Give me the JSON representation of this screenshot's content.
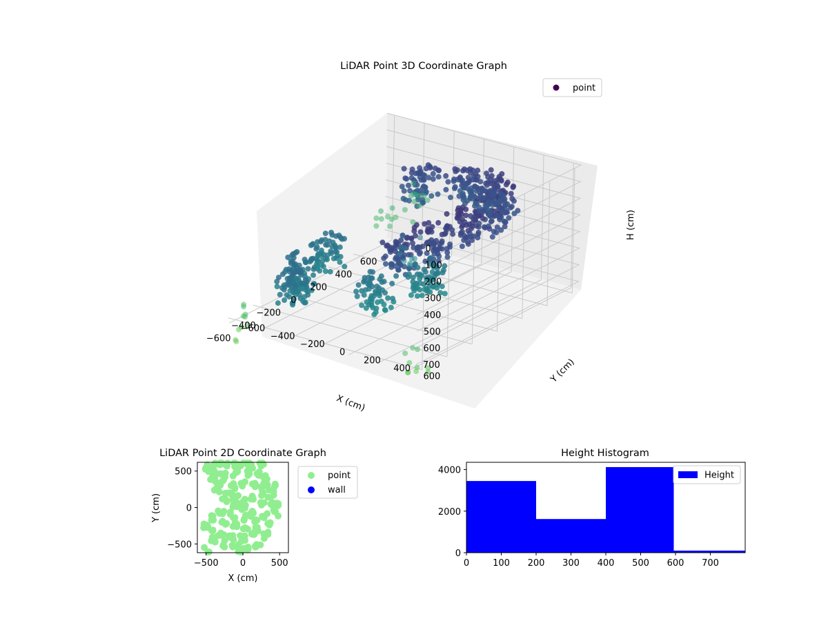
{
  "chart_data": [
    {
      "type": "scatter3d",
      "title": "LiDAR Point 3D Coordinate Graph",
      "xlabel": "X (cm)",
      "ylabel": "Y (cm)",
      "zlabel": "H (cm)",
      "x_ticks": [
        "−600",
        "−400",
        "−200",
        "0",
        "200",
        "400",
        "600"
      ],
      "y_ticks": [
        "−600",
        "−400",
        "−200",
        "0",
        "200",
        "400",
        "600"
      ],
      "z_ticks": [
        "0",
        "100",
        "200",
        "300",
        "400",
        "500",
        "600",
        "700"
      ],
      "xlim": [
        -650,
        650
      ],
      "ylim": [
        -650,
        650
      ],
      "zlim": [
        0,
        750
      ],
      "z_inverted": true,
      "grid": true,
      "legend": {
        "placement": "top-right",
        "entries": [
          {
            "label": "point",
            "color": "#440154"
          }
        ]
      },
      "colormap": "viridis (by height)",
      "series": [
        {
          "name": "point",
          "description_points": [
            {
              "x": -450,
              "y": 350,
              "h": 180
            },
            {
              "x": -300,
              "y": 450,
              "h": 150
            },
            {
              "x": -100,
              "y": 500,
              "h": 120
            },
            {
              "x": 100,
              "y": 500,
              "h": 120
            },
            {
              "x": 300,
              "y": 400,
              "h": 150
            },
            {
              "x": 450,
              "y": 200,
              "h": 200
            },
            {
              "x": 500,
              "y": 0,
              "h": 220
            },
            {
              "x": 450,
              "y": -250,
              "h": 250
            },
            {
              "x": 0,
              "y": -500,
              "h": 550
            },
            {
              "x": -300,
              "y": -450,
              "h": 550
            },
            {
              "x": -500,
              "y": -300,
              "h": 520
            },
            {
              "x": -200,
              "y": 0,
              "h": 600
            },
            {
              "x": 100,
              "y": 100,
              "h": 600
            },
            {
              "x": -600,
              "y": 600,
              "h": 700
            },
            {
              "x": -600,
              "y": 500,
              "h": 100
            },
            {
              "x": 600,
              "y": -600,
              "h": 550
            },
            {
              "x": 600,
              "y": -400,
              "h": 480
            },
            {
              "x": -650,
              "y": -500,
              "h": 720
            }
          ]
        }
      ]
    },
    {
      "type": "scatter",
      "title": "LiDAR Point 2D Coordinate Graph",
      "xlabel": "X (cm)",
      "ylabel": "Y (cm)",
      "x_ticks": [
        "−500",
        "0",
        "500"
      ],
      "y_ticks": [
        "−500",
        "0",
        "500"
      ],
      "xlim": [
        -620,
        620
      ],
      "ylim": [
        -620,
        620
      ],
      "legend": {
        "placement": "outside-right",
        "entries": [
          {
            "label": "point",
            "color": "#90ee90"
          },
          {
            "label": "wall",
            "color": "#0000ff"
          }
        ]
      },
      "series": [
        {
          "name": "point",
          "color": "#90ee90",
          "points": [
            [
              -400,
              600
            ],
            [
              -300,
              620
            ],
            [
              -200,
              610
            ],
            [
              -100,
              600
            ],
            [
              0,
              590
            ],
            [
              100,
              600
            ],
            [
              150,
              580
            ],
            [
              -450,
              500
            ],
            [
              -350,
              480
            ],
            [
              -250,
              450
            ],
            [
              -100,
              470
            ],
            [
              50,
              480
            ],
            [
              200,
              470
            ],
            [
              300,
              420
            ],
            [
              -400,
              380
            ],
            [
              -300,
              350
            ],
            [
              -150,
              300
            ],
            [
              0,
              320
            ],
            [
              150,
              330
            ],
            [
              300,
              300
            ],
            [
              400,
              280
            ],
            [
              -350,
              250
            ],
            [
              -200,
              200
            ],
            [
              -100,
              150
            ],
            [
              0,
              100
            ],
            [
              100,
              150
            ],
            [
              250,
              200
            ],
            [
              380,
              180
            ],
            [
              -250,
              100
            ],
            [
              -100,
              50
            ],
            [
              0,
              0
            ],
            [
              100,
              -50
            ],
            [
              250,
              50
            ],
            [
              400,
              50
            ],
            [
              480,
              20
            ],
            [
              -300,
              -50
            ],
            [
              -150,
              -100
            ],
            [
              0,
              -150
            ],
            [
              150,
              -150
            ],
            [
              300,
              -100
            ],
            [
              450,
              -80
            ],
            [
              -400,
              -150
            ],
            [
              -250,
              -200
            ],
            [
              -100,
              -250
            ],
            [
              50,
              -300
            ],
            [
              200,
              -280
            ],
            [
              350,
              -250
            ],
            [
              -450,
              -300
            ],
            [
              -300,
              -350
            ],
            [
              -150,
              -400
            ],
            [
              0,
              -420
            ],
            [
              150,
              -400
            ],
            [
              300,
              -380
            ],
            [
              -400,
              -450
            ],
            [
              -250,
              -500
            ],
            [
              -100,
              -550
            ],
            [
              50,
              -560
            ],
            [
              200,
              -500
            ],
            [
              -500,
              -250
            ],
            [
              -480,
              -580
            ],
            [
              -500,
              550
            ],
            [
              -50,
              -600
            ],
            [
              250,
              600
            ]
          ]
        },
        {
          "name": "wall",
          "color": "#0000ff",
          "points": []
        }
      ]
    },
    {
      "type": "histogram",
      "title": "Height Histogram",
      "x_ticks": [
        "0",
        "100",
        "200",
        "300",
        "400",
        "500",
        "600",
        "700"
      ],
      "y_ticks": [
        "0",
        "2000",
        "4000"
      ],
      "xlim": [
        0,
        800
      ],
      "ylim": [
        0,
        4350
      ],
      "legend": {
        "placement": "top-right",
        "entries": [
          {
            "label": "Height",
            "color": "#0000ff"
          }
        ]
      },
      "color": "#0000ff",
      "bins": [
        {
          "start": 0,
          "end": 200,
          "count": 3450
        },
        {
          "start": 200,
          "end": 400,
          "count": 1620
        },
        {
          "start": 400,
          "end": 595,
          "count": 4120
        },
        {
          "start": 595,
          "end": 800,
          "count": 100
        }
      ]
    }
  ]
}
